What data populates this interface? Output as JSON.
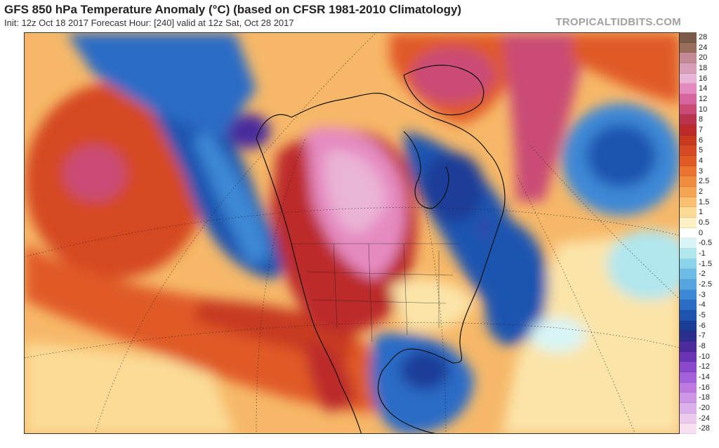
{
  "header": {
    "title": "GFS 850 hPa Temperature Anomaly (°C) (based on CFSR 1981-2010 Climatology)",
    "subtitle": "Init: 12z Oct 18 2017   Forecast Hour: [240]   valid at 12z Sat, Oct 28 2017",
    "brand": "TROPICALTIDBITS.COM"
  },
  "colorbar": {
    "entries": [
      {
        "label": "28",
        "color": "#7a5a48"
      },
      {
        "label": "24",
        "color": "#9a6c5c"
      },
      {
        "label": "20",
        "color": "#c48a96"
      },
      {
        "label": "18",
        "color": "#d8a0b8"
      },
      {
        "label": "16",
        "color": "#eab4d6"
      },
      {
        "label": "14",
        "color": "#e58ac0"
      },
      {
        "label": "12",
        "color": "#d8669e"
      },
      {
        "label": "10",
        "color": "#c94b76"
      },
      {
        "label": "8",
        "color": "#b8344e"
      },
      {
        "label": "7",
        "color": "#bc2a2a"
      },
      {
        "label": "6",
        "color": "#c73a20"
      },
      {
        "label": "5",
        "color": "#d54a22"
      },
      {
        "label": "4",
        "color": "#e05a26"
      },
      {
        "label": "3",
        "color": "#ea7430"
      },
      {
        "label": "2.5",
        "color": "#f08c3c"
      },
      {
        "label": "2",
        "color": "#f4a452"
      },
      {
        "label": "1.5",
        "color": "#f8c070"
      },
      {
        "label": "1",
        "color": "#fbdb96"
      },
      {
        "label": "0.5",
        "color": "#fdf0c4"
      },
      {
        "label": "0",
        "color": "#ffffff"
      },
      {
        "label": "-0.5",
        "color": "#d8f4f4"
      },
      {
        "label": "-1",
        "color": "#b0e6ee"
      },
      {
        "label": "-1.5",
        "color": "#8cd4ea"
      },
      {
        "label": "-2",
        "color": "#6ebce6"
      },
      {
        "label": "-2.5",
        "color": "#56a4e0"
      },
      {
        "label": "-3",
        "color": "#3c88d6"
      },
      {
        "label": "-4",
        "color": "#2a6cc6"
      },
      {
        "label": "-5",
        "color": "#1e54b0"
      },
      {
        "label": "-6",
        "color": "#1a3e98"
      },
      {
        "label": "-7",
        "color": "#2a2e8c"
      },
      {
        "label": "-8",
        "color": "#4a2a9c"
      },
      {
        "label": "-10",
        "color": "#6a34b4"
      },
      {
        "label": "-12",
        "color": "#8a48cc"
      },
      {
        "label": "-14",
        "color": "#a460d8"
      },
      {
        "label": "-16",
        "color": "#bc7ae0"
      },
      {
        "label": "-18",
        "color": "#d096e6"
      },
      {
        "label": "-20",
        "color": "#dcb0ea"
      },
      {
        "label": "-24",
        "color": "#eccaee"
      },
      {
        "label": "-28",
        "color": "#f8e0f0"
      }
    ]
  }
}
